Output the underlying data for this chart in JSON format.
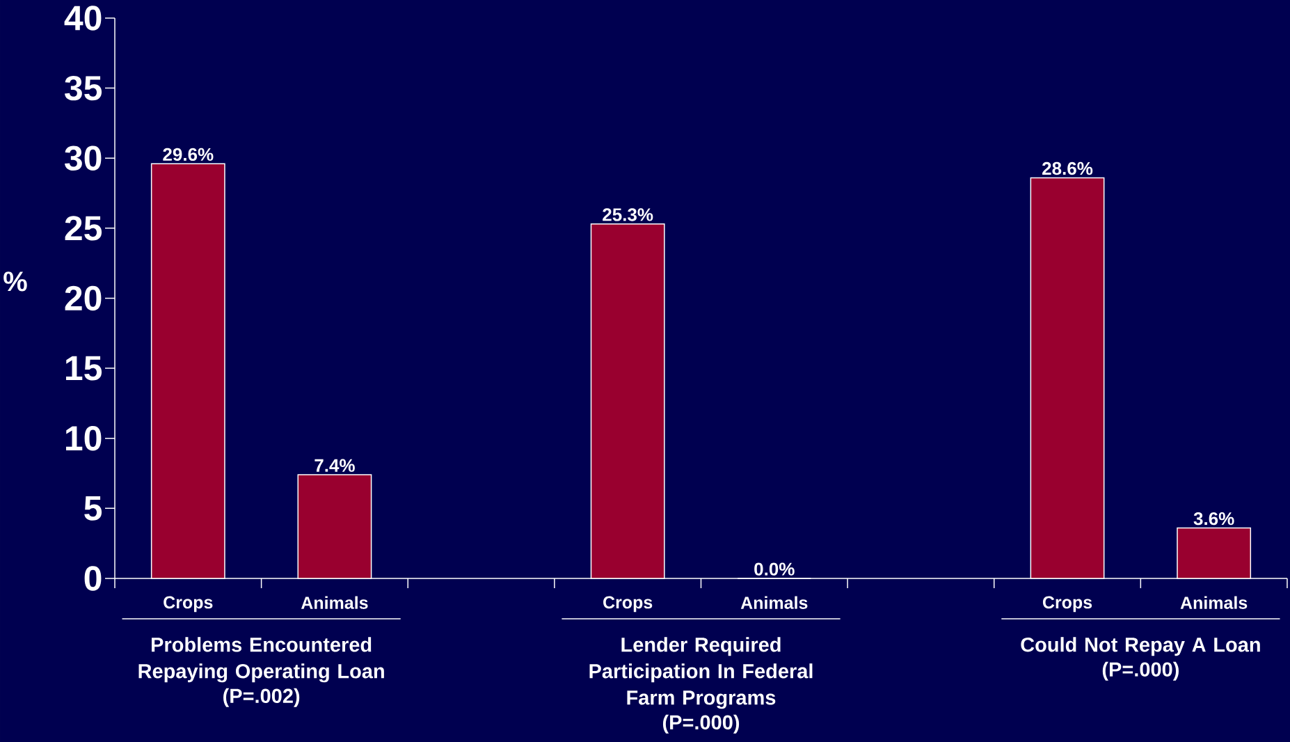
{
  "chart_data": {
    "type": "bar",
    "ylabel": "%",
    "categories": [
      "Crops",
      "Animals",
      null,
      "Crops",
      "Animals",
      null,
      "Crops",
      "Animals"
    ],
    "values": [
      29.6,
      7.4,
      null,
      25.3,
      0.0,
      null,
      28.6,
      3.6
    ],
    "value_labels": [
      "29.6%",
      "7.4%",
      null,
      "25.3%",
      "0.0%",
      null,
      "28.6%",
      "3.6%"
    ],
    "color": "#99002f",
    "ylim": [
      0,
      40
    ],
    "yticks": [
      0,
      5,
      10,
      15,
      20,
      25,
      30,
      35,
      40
    ],
    "annotations": [
      "Problems Encountered Repaying Operating Loan",
      "(P=.002)",
      "Lender Required Participation In Federal Farm Programs",
      "(P=.000)",
      "Could Not Repay A Loan",
      "(P=.000)"
    ]
  }
}
